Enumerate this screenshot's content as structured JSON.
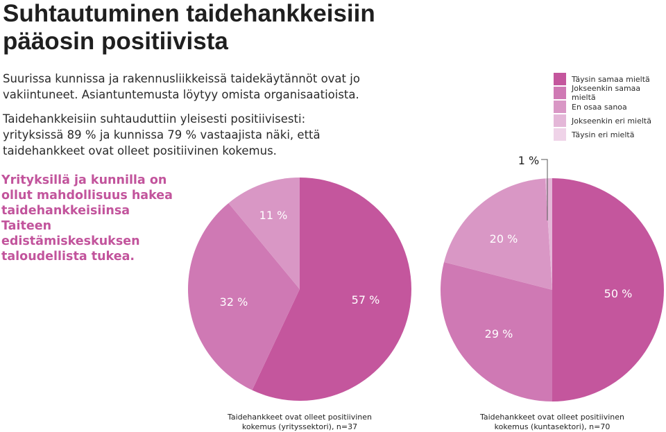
{
  "title": {
    "line1": "Suhtautuminen taidehankkeisiin",
    "line2": "pääosin positiivista"
  },
  "intro": {
    "paragraph1": "Suurissa kunnissa ja rakennusliikkeissä taidekäytännöt ovat jo vakiintuneet. Asiantuntemusta löytyy omista organisaatioista.",
    "paragraph2": "Taidehankkeisiin suhtauduttiin yleisesti positiivisesti: yrityksissä 89 % ja kunnissa 79 % vastaajista näki, että taidehankkeet ovat olleet positiivinen kokemus."
  },
  "highlight": "Yrityksillä ja kunnilla on ollut mahdollisuus hakea taidehankkeisiinsa Taiteen edistämiskeskuksen taloudellista tukea.",
  "legend": [
    {
      "label": "Täysin samaa mieltä",
      "color": "#c4569d"
    },
    {
      "label": "Jokseenkin samaa mieltä",
      "color": "#cf79b4"
    },
    {
      "label": "En osaa sanoa",
      "color": "#d997c5"
    },
    {
      "label": "Jokseenkin eri mieltä",
      "color": "#e4b7d8"
    },
    {
      "label": "Täysin eri mieltä",
      "color": "#efd3e8"
    }
  ],
  "chart_data": [
    {
      "type": "pie",
      "caption_line1": "Taidehankkeet ovat olleet positiivinen",
      "caption_line2": "kokemus (yrityssektori), n=37",
      "slices": [
        {
          "category": "Täysin samaa mieltä",
          "value": 57,
          "label": "57 %"
        },
        {
          "category": "Jokseenkin samaa mieltä",
          "value": 32,
          "label": "32 %"
        },
        {
          "category": "En osaa sanoa",
          "value": 11,
          "label": "11 %"
        }
      ]
    },
    {
      "type": "pie",
      "caption_line1": "Taidehankkeet ovat olleet positiivinen",
      "caption_line2": "kokemus (kuntasektori), n=70",
      "slices": [
        {
          "category": "Täysin samaa mieltä",
          "value": 50,
          "label": "50 %"
        },
        {
          "category": "Jokseenkin samaa mieltä",
          "value": 29,
          "label": "29 %"
        },
        {
          "category": "En osaa sanoa",
          "value": 20,
          "label": "20 %"
        },
        {
          "category": "Jokseenkin eri mieltä",
          "value": 1,
          "label": "1 %"
        }
      ]
    }
  ]
}
